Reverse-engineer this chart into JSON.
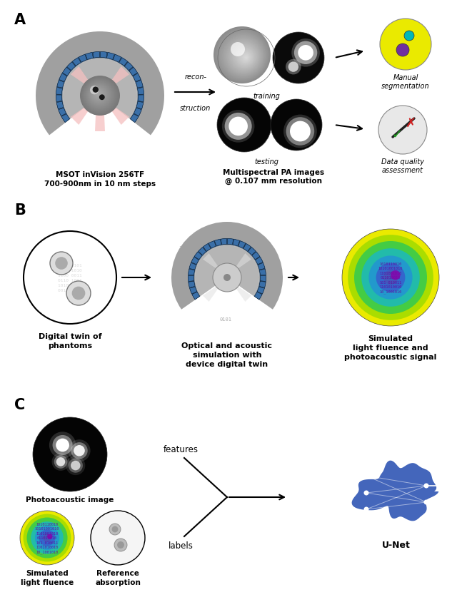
{
  "fig_width": 6.4,
  "fig_height": 8.45,
  "dpi": 100,
  "bg_color": "#ffffff",
  "colors": {
    "gray_shell": "#a0a0a0",
    "gray_shell_dark": "#888888",
    "blue_detector": "#3a6fa8",
    "blue_detector_dark": "#2a5080",
    "pink_beam": "#f5c0c0",
    "sphere_mid": "#929292",
    "sphere_light": "#c0c0c0",
    "black_dot": "#1a1a1a",
    "yellow_circle": "#eaea00",
    "cyan_dot": "#00b8b8",
    "purple_dot": "#7030a0",
    "check_green": "#20a020",
    "cross_red": "#d02020",
    "white": "#ffffff",
    "black": "#000000",
    "binary_gray": "#bbbbbb",
    "binary_purple": "#660099",
    "unet_blue": "#4466bb"
  },
  "texts": {
    "msot": "MSOT inVision 256TF\n700-900nm in 10 nm steps",
    "recon_top": "recon-",
    "recon_bot": "struction",
    "multispectral": "Multispectral PA images\n@ 0.107 mm resolution",
    "training": "training",
    "testing": "testing",
    "manual_seg": "Manual\nsegmentation",
    "data_quality": "Data quality\nassessment",
    "digital_twin": "Digital twin of\nphantoms",
    "optical_acoustic": "Optical and acoustic\nsimulation with\ndevice digital twin",
    "simulated_light": "Simulated\nlight fluence and\nphotoacoustic signal",
    "pa_image": "Photoacoustic image",
    "sim_light_fluence": "Simulated\nlight fluence",
    "ref_absorption": "Reference\nabsorption",
    "features": "features",
    "labels": "labels",
    "unet": "U-Net"
  }
}
